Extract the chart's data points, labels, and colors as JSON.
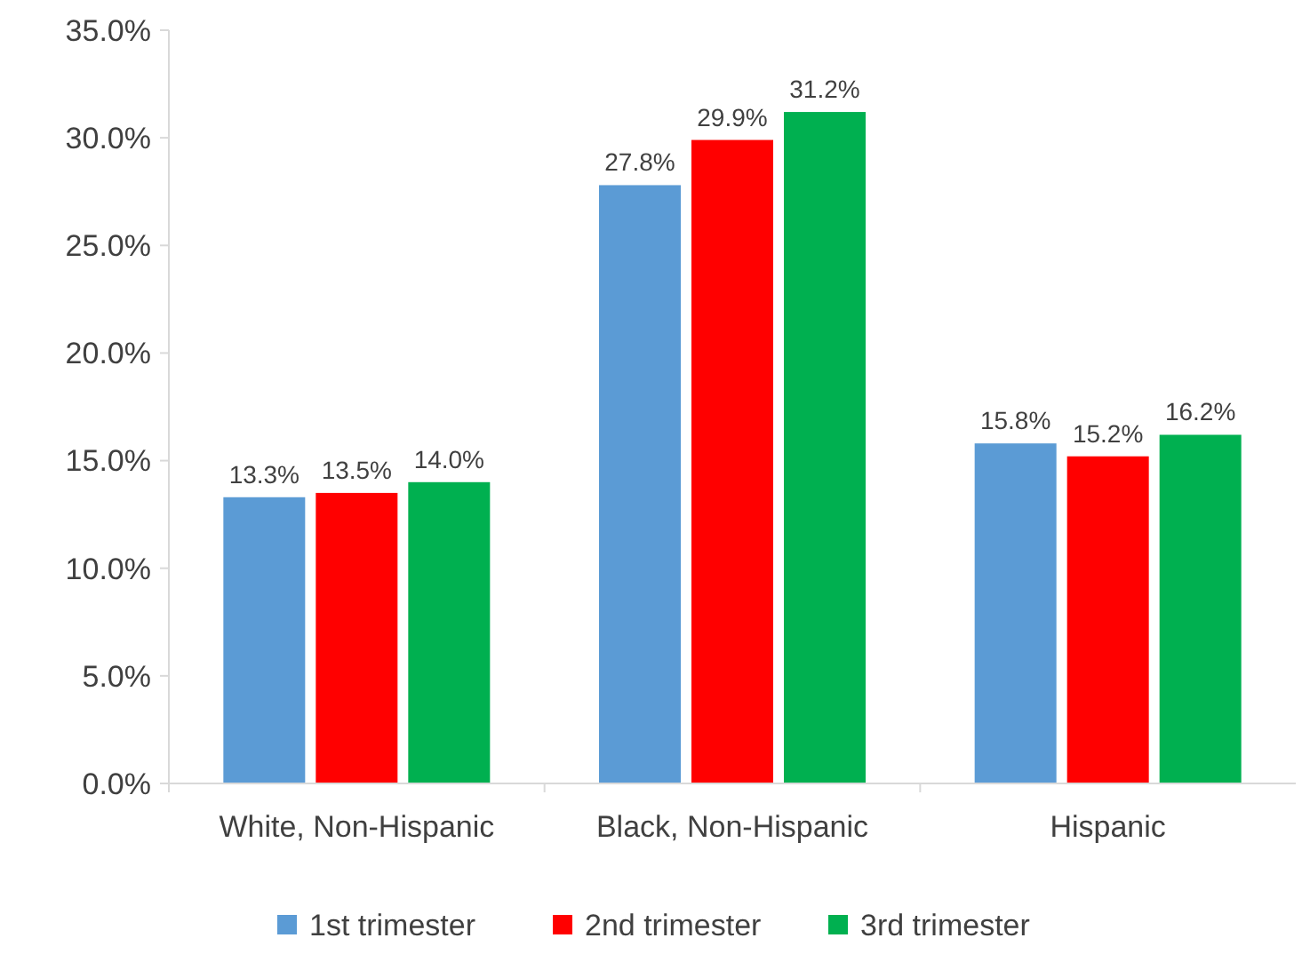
{
  "chart_data": {
    "type": "bar",
    "categories": [
      "White, Non-Hispanic",
      "Black, Non-Hispanic",
      "Hispanic"
    ],
    "series": [
      {
        "name": "1st trimester",
        "color": "#5b9bd5",
        "values": [
          13.3,
          27.8,
          15.8
        ],
        "value_labels": [
          "13.3%",
          "27.8%",
          "15.8%"
        ]
      },
      {
        "name": "2nd trimester",
        "color": "#ff0000",
        "values": [
          13.5,
          29.9,
          15.2
        ],
        "value_labels": [
          "13.5%",
          "29.9%",
          "15.2%"
        ]
      },
      {
        "name": "3rd trimester",
        "color": "#00b050",
        "values": [
          14.0,
          31.2,
          16.2
        ],
        "value_labels": [
          "14.0%",
          "31.2%",
          "16.2%"
        ]
      }
    ],
    "ylim": [
      0,
      35
    ],
    "yticks": [
      {
        "value": 0,
        "label": "0.0%"
      },
      {
        "value": 5,
        "label": "5.0%"
      },
      {
        "value": 10,
        "label": "10.0%"
      },
      {
        "value": 15,
        "label": "15.0%"
      },
      {
        "value": 20,
        "label": "20.0%"
      },
      {
        "value": 25,
        "label": "25.0%"
      },
      {
        "value": 30,
        "label": "30.0%"
      },
      {
        "value": 35,
        "label": "35.0%"
      }
    ],
    "legend": "bottom"
  }
}
